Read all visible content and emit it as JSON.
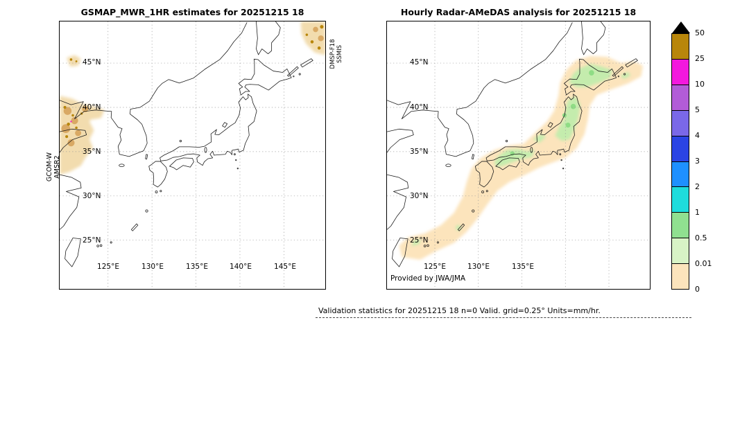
{
  "left_panel": {
    "title": "GSMAP_MWR_1HR estimates for 20251215 18",
    "side_left": [
      "GCOM-W",
      "AMSR2"
    ],
    "side_right": [
      "DMSP-F18",
      "SSMIS"
    ],
    "lat_ticks": [
      "45°N",
      "40°N",
      "35°N",
      "30°N",
      "25°N"
    ],
    "lon_ticks": [
      "125°E",
      "130°E",
      "135°E",
      "140°E",
      "145°E"
    ]
  },
  "right_panel": {
    "title": "Hourly Radar-AMeDAS analysis for 20251215 18",
    "credit": "Provided by JWA/JMA",
    "lat_ticks": [
      "45°N",
      "40°N",
      "35°N",
      "30°N",
      "25°N"
    ],
    "lon_ticks": [
      "125°E",
      "130°E",
      "135°E"
    ]
  },
  "colorbar": {
    "tick_labels": [
      "50",
      "25",
      "10",
      "5",
      "4",
      "3",
      "2",
      "1",
      "0.5",
      "0.01",
      "0"
    ],
    "colors": [
      "#b8860b",
      "#f318de",
      "#b25cd8",
      "#7a68e8",
      "#2b44e4",
      "#1e90ff",
      "#1edcdc",
      "#90e090",
      "#d8f3c6",
      "#fce4bc"
    ],
    "arrow_color": "#000000"
  },
  "footer": {
    "text": "Validation statistics for 20251215 18  n=0 Valid. grid=0.25° Units=mm/hr."
  },
  "colors": {
    "gsmap_patch": "#f2dcae",
    "tan_spot": "#d9a964",
    "dark_spot": "#b8860b",
    "magenta_spot": "#f318de",
    "trace_peach": "#fce4bc",
    "light_green": "#c4ecad",
    "mid_green": "#8fdc85",
    "grid": "#9a9a9a",
    "coast": "#1a1a1a"
  }
}
